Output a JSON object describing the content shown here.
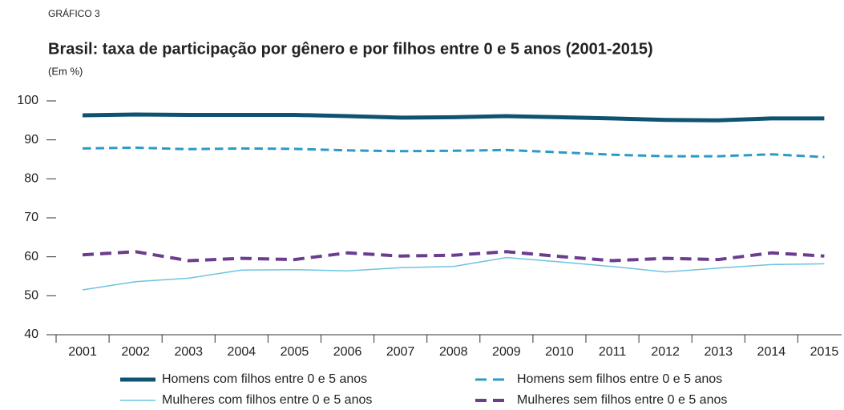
{
  "chart_data": {
    "type": "line",
    "kicker": "GRÁFICO 3",
    "title": "Brasil: taxa de participação por gênero e por filhos entre 0 e 5 anos (2001-2015)",
    "subtitle": "(Em %)",
    "categories": [
      "2001",
      "2002",
      "2003",
      "2004",
      "2005",
      "2006",
      "2007",
      "2008",
      "2009",
      "2010",
      "2011",
      "2012",
      "2013",
      "2014",
      "2015"
    ],
    "ylim": [
      40,
      100
    ],
    "yticks": [
      40,
      50,
      60,
      70,
      80,
      90,
      100
    ],
    "legend": "bottom",
    "series": [
      {
        "name": "Homens com filhos entre 0 e 5 anos",
        "color": "#0e5470",
        "width": 5,
        "dashed": false,
        "values": [
          96.3,
          96.5,
          96.4,
          96.4,
          96.4,
          96.1,
          95.7,
          95.8,
          96.1,
          95.8,
          95.5,
          95.1,
          95.0,
          95.5,
          95.5
        ]
      },
      {
        "name": "Homens sem filhos entre 0 e 5 anos",
        "color": "#2a9bc6",
        "width": 3,
        "dashed": true,
        "values": [
          87.8,
          88.0,
          87.6,
          87.8,
          87.7,
          87.3,
          87.1,
          87.2,
          87.4,
          86.8,
          86.2,
          85.8,
          85.8,
          86.3,
          85.6
        ]
      },
      {
        "name": "Mulheres com filhos entre 0 e 5 anos",
        "color": "#6cc4e0",
        "width": 1.5,
        "dashed": false,
        "values": [
          51.5,
          53.6,
          54.5,
          56.6,
          56.7,
          56.4,
          57.2,
          57.5,
          59.8,
          58.7,
          57.5,
          56.1,
          57.1,
          58.0,
          58.2
        ]
      },
      {
        "name": "Mulheres sem filhos entre 0 e 5 anos",
        "color": "#6a3d8f",
        "width": 4,
        "dashed": true,
        "values": [
          60.5,
          61.3,
          59.0,
          59.6,
          59.3,
          61.0,
          60.2,
          60.4,
          61.3,
          60.1,
          59.0,
          59.6,
          59.3,
          61.0,
          60.2
        ]
      }
    ]
  }
}
